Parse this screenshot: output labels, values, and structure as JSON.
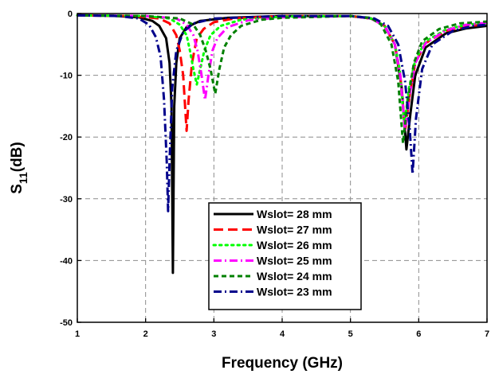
{
  "chart_data": {
    "type": "line",
    "xlabel": "Frequency (GHz)",
    "ylabel": "S11(dB)",
    "xlim": [
      1,
      7
    ],
    "ylim": [
      -50,
      0
    ],
    "xticks": [
      1,
      2,
      3,
      4,
      5,
      6,
      7
    ],
    "yticks": [
      0,
      -10,
      -20,
      -30,
      -40,
      -50
    ],
    "grid": "dashed",
    "legend_position": "lower-center",
    "series": [
      {
        "name": "Wslot= 28 mm",
        "color": "#000000",
        "dash": "solid",
        "points": [
          [
            1,
            -0.3
          ],
          [
            1.5,
            -0.35
          ],
          [
            1.9,
            -0.6
          ],
          [
            2.1,
            -1.2
          ],
          [
            2.2,
            -2
          ],
          [
            2.3,
            -4
          ],
          [
            2.35,
            -8
          ],
          [
            2.38,
            -15
          ],
          [
            2.4,
            -42
          ],
          [
            2.42,
            -15
          ],
          [
            2.45,
            -8
          ],
          [
            2.5,
            -4
          ],
          [
            2.6,
            -2.2
          ],
          [
            2.8,
            -1.2
          ],
          [
            3.2,
            -0.7
          ],
          [
            4,
            -0.4
          ],
          [
            5,
            -0.4
          ],
          [
            5.3,
            -0.8
          ],
          [
            5.5,
            -2
          ],
          [
            5.65,
            -5
          ],
          [
            5.75,
            -12
          ],
          [
            5.82,
            -22
          ],
          [
            5.88,
            -16
          ],
          [
            5.95,
            -10
          ],
          [
            6.1,
            -5.5
          ],
          [
            6.4,
            -3.2
          ],
          [
            6.7,
            -2.4
          ],
          [
            7,
            -2
          ]
        ]
      },
      {
        "name": "Wslot= 27 mm",
        "color": "#ff0000",
        "dash": "long-dash",
        "points": [
          [
            1,
            -0.3
          ],
          [
            1.8,
            -0.4
          ],
          [
            2.2,
            -0.8
          ],
          [
            2.35,
            -1.6
          ],
          [
            2.45,
            -3.5
          ],
          [
            2.5,
            -6
          ],
          [
            2.55,
            -10
          ],
          [
            2.6,
            -19
          ],
          [
            2.63,
            -14
          ],
          [
            2.68,
            -8
          ],
          [
            2.75,
            -4
          ],
          [
            2.85,
            -2.5
          ],
          [
            3,
            -1.4
          ],
          [
            3.3,
            -0.8
          ],
          [
            4,
            -0.4
          ],
          [
            5,
            -0.4
          ],
          [
            5.3,
            -0.8
          ],
          [
            5.5,
            -2
          ],
          [
            5.65,
            -5
          ],
          [
            5.73,
            -10
          ],
          [
            5.8,
            -19
          ],
          [
            5.87,
            -13
          ],
          [
            5.95,
            -8
          ],
          [
            6.1,
            -4.8
          ],
          [
            6.4,
            -2.8
          ],
          [
            6.7,
            -2
          ],
          [
            7,
            -1.8
          ]
        ]
      },
      {
        "name": "Wslot= 26 mm",
        "color": "#00ff00",
        "dash": "dotted",
        "points": [
          [
            1,
            -0.3
          ],
          [
            2,
            -0.4
          ],
          [
            2.35,
            -0.8
          ],
          [
            2.5,
            -1.8
          ],
          [
            2.6,
            -3.5
          ],
          [
            2.65,
            -6
          ],
          [
            2.7,
            -9
          ],
          [
            2.75,
            -11.5
          ],
          [
            2.8,
            -9
          ],
          [
            2.86,
            -6
          ],
          [
            2.95,
            -3.5
          ],
          [
            3.1,
            -2
          ],
          [
            3.4,
            -1
          ],
          [
            4,
            -0.5
          ],
          [
            5,
            -0.4
          ],
          [
            5.3,
            -0.8
          ],
          [
            5.5,
            -2
          ],
          [
            5.65,
            -5
          ],
          [
            5.72,
            -9
          ],
          [
            5.79,
            -18
          ],
          [
            5.86,
            -12
          ],
          [
            5.95,
            -7.5
          ],
          [
            6.1,
            -4.5
          ],
          [
            6.4,
            -2.6
          ],
          [
            6.7,
            -1.8
          ],
          [
            7,
            -1.6
          ]
        ]
      },
      {
        "name": "Wslot= 25 mm",
        "color": "#ff00ff",
        "dash": "dash-dot",
        "points": [
          [
            1,
            -0.3
          ],
          [
            2,
            -0.4
          ],
          [
            2.45,
            -0.8
          ],
          [
            2.6,
            -1.8
          ],
          [
            2.7,
            -3.5
          ],
          [
            2.76,
            -6
          ],
          [
            2.82,
            -10
          ],
          [
            2.87,
            -14
          ],
          [
            2.92,
            -10
          ],
          [
            2.98,
            -6
          ],
          [
            3.05,
            -4
          ],
          [
            3.2,
            -2.2
          ],
          [
            3.5,
            -1.1
          ],
          [
            4,
            -0.6
          ],
          [
            5,
            -0.4
          ],
          [
            5.3,
            -0.8
          ],
          [
            5.5,
            -2
          ],
          [
            5.65,
            -5
          ],
          [
            5.73,
            -10
          ],
          [
            5.8,
            -19
          ],
          [
            5.87,
            -13
          ],
          [
            5.95,
            -8
          ],
          [
            6.1,
            -4.8
          ],
          [
            6.4,
            -2.7
          ],
          [
            6.7,
            -1.8
          ],
          [
            7,
            -1.5
          ]
        ]
      },
      {
        "name": "Wslot= 24 mm",
        "color": "#008000",
        "dash": "dashed",
        "points": [
          [
            1,
            -0.3
          ],
          [
            2,
            -0.4
          ],
          [
            2.5,
            -0.8
          ],
          [
            2.7,
            -1.8
          ],
          [
            2.8,
            -3.5
          ],
          [
            2.88,
            -6
          ],
          [
            2.95,
            -9
          ],
          [
            3.02,
            -13
          ],
          [
            3.08,
            -9
          ],
          [
            3.15,
            -5.5
          ],
          [
            3.25,
            -3.5
          ],
          [
            3.4,
            -2
          ],
          [
            3.7,
            -1
          ],
          [
            4,
            -0.7
          ],
          [
            5,
            -0.4
          ],
          [
            5.3,
            -0.7
          ],
          [
            5.45,
            -1.8
          ],
          [
            5.6,
            -5
          ],
          [
            5.7,
            -11
          ],
          [
            5.77,
            -21
          ],
          [
            5.84,
            -14
          ],
          [
            5.93,
            -8
          ],
          [
            6.05,
            -4.5
          ],
          [
            6.3,
            -2.5
          ],
          [
            6.6,
            -1.6
          ],
          [
            7,
            -1.3
          ]
        ]
      },
      {
        "name": "Wslot= 23 mm",
        "color": "#00008b",
        "dash": "dash-dot",
        "points": [
          [
            1,
            -0.3
          ],
          [
            1.6,
            -0.4
          ],
          [
            1.9,
            -0.8
          ],
          [
            2.05,
            -1.8
          ],
          [
            2.15,
            -3.8
          ],
          [
            2.22,
            -7
          ],
          [
            2.27,
            -14
          ],
          [
            2.31,
            -24
          ],
          [
            2.33,
            -32
          ],
          [
            2.35,
            -24
          ],
          [
            2.39,
            -12
          ],
          [
            2.45,
            -6
          ],
          [
            2.55,
            -3
          ],
          [
            2.7,
            -1.6
          ],
          [
            3,
            -0.8
          ],
          [
            4,
            -0.4
          ],
          [
            5,
            -0.4
          ],
          [
            5.35,
            -0.8
          ],
          [
            5.55,
            -2
          ],
          [
            5.7,
            -5
          ],
          [
            5.8,
            -11
          ],
          [
            5.87,
            -19
          ],
          [
            5.91,
            -26
          ],
          [
            5.96,
            -17
          ],
          [
            6.05,
            -9
          ],
          [
            6.2,
            -5
          ],
          [
            6.5,
            -2.8
          ],
          [
            6.8,
            -2
          ],
          [
            7,
            -1.8
          ]
        ]
      }
    ]
  }
}
